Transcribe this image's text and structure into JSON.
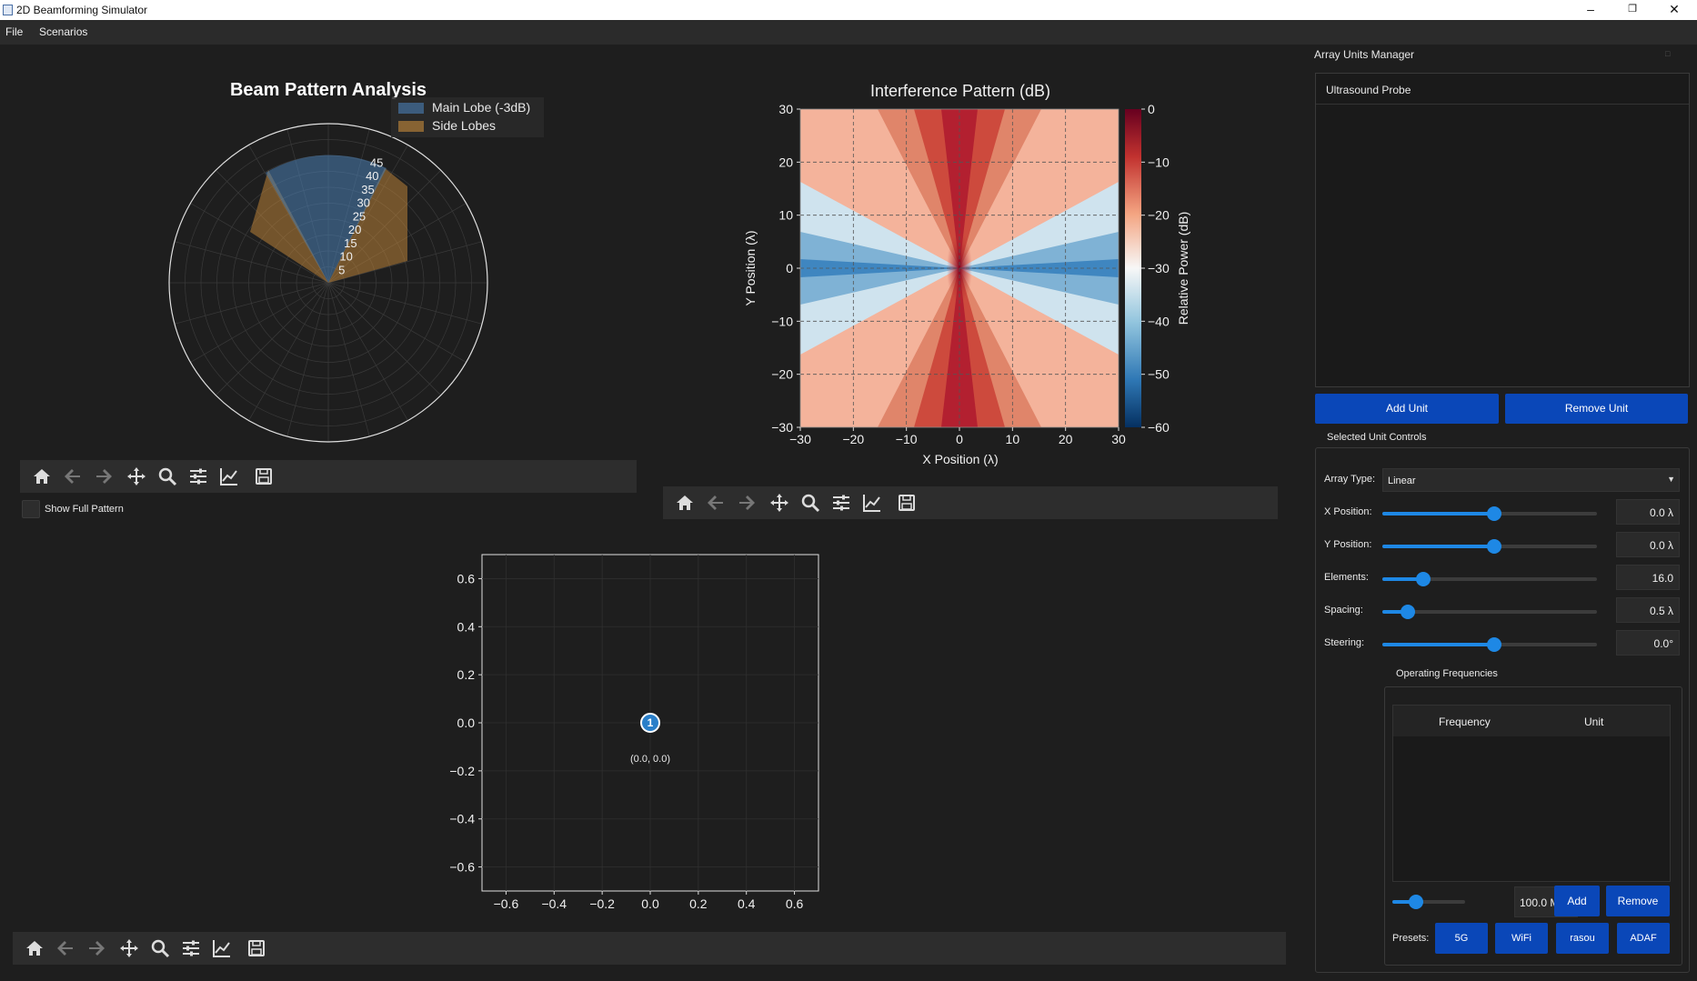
{
  "window": {
    "title": "2D Beamforming Simulator"
  },
  "menu": [
    "File",
    "Scenarios"
  ],
  "polar": {
    "title": "Beam Pattern Analysis",
    "legend": [
      "Main Lobe (-3dB)",
      "Side Lobes"
    ],
    "radial_ticks": [
      "5",
      "10",
      "15",
      "20",
      "25",
      "30",
      "35",
      "40",
      "45"
    ],
    "show_full_pattern_label": "Show Full Pattern",
    "colors": {
      "main": "#4a7fb5",
      "side": "#c78a3a"
    }
  },
  "interference": {
    "title": "Interference Pattern (dB)",
    "xlabel": "X Position (λ)",
    "ylabel": "Y Position (λ)",
    "cbar_label": "Relative Power (dB)",
    "xticks": [
      "−30",
      "−20",
      "−10",
      "0",
      "10",
      "20",
      "30"
    ],
    "yticks": [
      "30",
      "20",
      "10",
      "0",
      "−10",
      "−20",
      "−30"
    ],
    "cbar_ticks": [
      "0",
      "−10",
      "−20",
      "−30",
      "−40",
      "−50",
      "−60"
    ],
    "xlim": [
      -30,
      30
    ],
    "ylim": [
      -30,
      30
    ],
    "clim": [
      -60,
      0
    ]
  },
  "array_plot": {
    "xticks": [
      "−0.6",
      "−0.4",
      "−0.2",
      "0.0",
      "0.2",
      "0.4",
      "0.6"
    ],
    "yticks": [
      "0.6",
      "0.4",
      "0.2",
      "0.0",
      "−0.2",
      "−0.4",
      "−0.6"
    ],
    "unit_label": "1",
    "unit_coord": "(0.0, 0.0)",
    "xlim": [
      -0.7,
      0.7
    ],
    "ylim": [
      -0.7,
      0.7
    ]
  },
  "toolbar_icons": [
    "home-icon",
    "back-arrow-icon",
    "forward-arrow-icon",
    "pan-icon",
    "zoom-icon",
    "configure-icon",
    "edit-axis-icon",
    "save-icon"
  ],
  "panel": {
    "title": "Array Units Manager",
    "units": [
      "Ultrasound Probe"
    ],
    "add_unit": "Add Unit",
    "remove_unit": "Remove Unit",
    "selected_controls": "Selected Unit Controls",
    "array_type_label": "Array Type:",
    "array_type_value": "Linear",
    "controls": [
      {
        "label": "X Position:",
        "value": "0.0 λ",
        "level": 0.52
      },
      {
        "label": "Y Position:",
        "value": "0.0 λ",
        "level": 0.52
      },
      {
        "label": "Elements:",
        "value": "16.0",
        "level": 0.19
      },
      {
        "label": "Spacing:",
        "value": "0.5 λ",
        "level": 0.12
      },
      {
        "label": "Steering:",
        "value": "0.0°",
        "level": 0.52
      }
    ],
    "op_freq_title": "Operating Frequencies",
    "freq_cols": [
      "Frequency",
      "Unit"
    ],
    "freq_value": "100.0 MHz",
    "freq_level": 0.33,
    "add": "Add",
    "remove": "Remove",
    "presets_label": "Presets:",
    "presets": [
      "5G",
      "WiFi",
      "rasou",
      "ADAF"
    ]
  }
}
